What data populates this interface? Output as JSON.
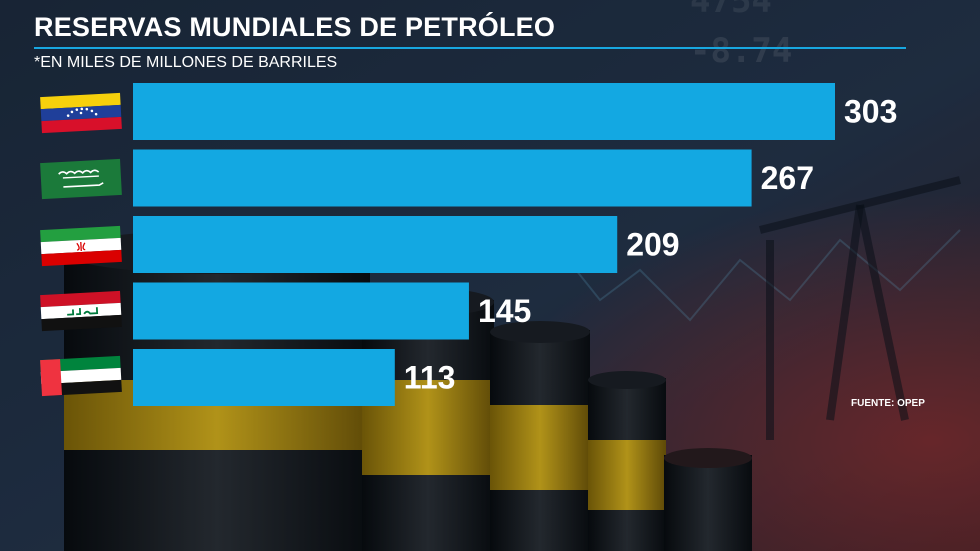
{
  "chart_data": {
    "type": "bar",
    "orientation": "horizontal",
    "title": "RESERVAS MUNDIALES DE PETRÓLEO",
    "subtitle": "*EN MILES DE MILLONES DE BARRILES",
    "categories": [
      "venezuela-flag",
      "saudi-arabia-flag",
      "iran-flag",
      "iraq-flag",
      "uae-flag"
    ],
    "values": [
      303,
      267,
      209,
      145,
      113
    ],
    "value_labels": [
      "303",
      "267",
      "209",
      "145",
      "113"
    ],
    "xlim": [
      0,
      303
    ],
    "grid": false,
    "bar_color": "#13a8e2",
    "label_color": "#ffffff",
    "source": "FUENTE: OPEP"
  },
  "colors": {
    "accent": "#18a7e0",
    "background": "#0e1622"
  }
}
